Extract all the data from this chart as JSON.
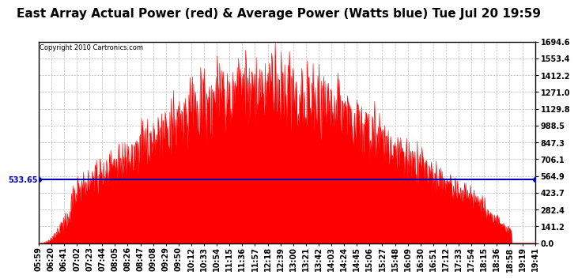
{
  "title": "East Array Actual Power (red) & Average Power (Watts blue) Tue Jul 20 19:59",
  "copyright": "Copyright 2010 Cartronics.com",
  "average_power": 533.65,
  "ymax": 1694.6,
  "ymin": 0.0,
  "yticks": [
    0.0,
    141.2,
    282.4,
    423.7,
    564.9,
    706.1,
    847.3,
    988.5,
    1129.8,
    1271.0,
    1412.2,
    1553.4,
    1694.6
  ],
  "xtick_labels": [
    "05:59",
    "06:20",
    "06:41",
    "07:02",
    "07:23",
    "07:44",
    "08:05",
    "08:26",
    "08:47",
    "09:08",
    "09:29",
    "09:50",
    "10:12",
    "10:33",
    "10:54",
    "11:15",
    "11:36",
    "11:57",
    "12:18",
    "12:39",
    "13:00",
    "13:21",
    "13:42",
    "14:03",
    "14:24",
    "14:45",
    "15:06",
    "15:27",
    "15:48",
    "16:09",
    "16:30",
    "16:51",
    "17:12",
    "17:33",
    "17:54",
    "18:15",
    "18:36",
    "18:58",
    "19:19",
    "19:41"
  ],
  "background_color": "#ffffff",
  "red_color": "#ff0000",
  "blue_color": "#0000bb",
  "grid_color": "#bbbbbb",
  "title_fontsize": 11,
  "label_fontsize": 7
}
